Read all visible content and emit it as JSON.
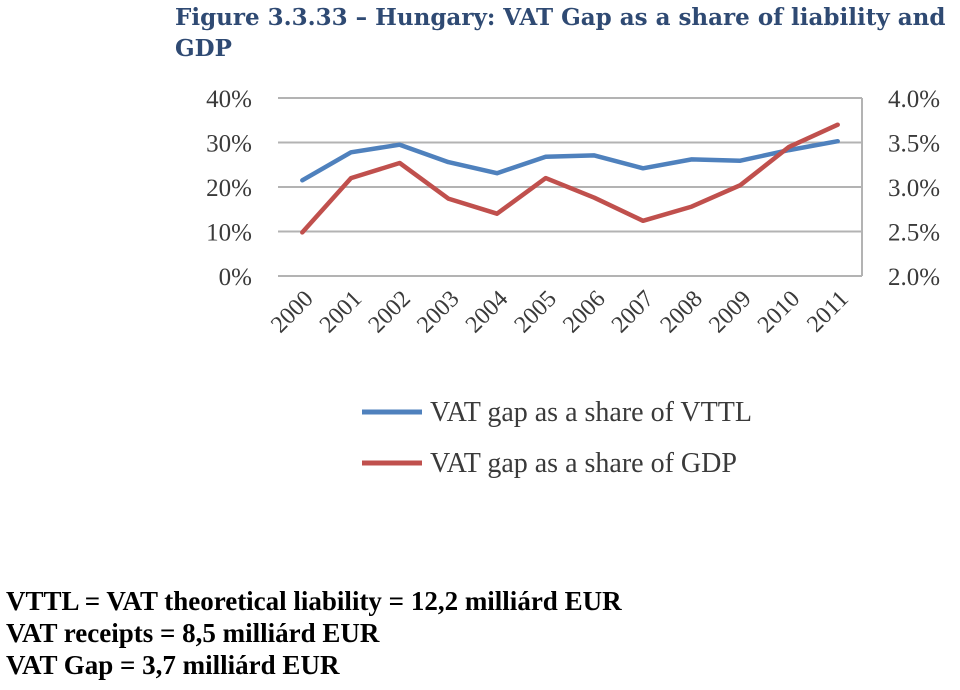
{
  "figure": {
    "title": "Figure 3.3.33 – Hungary: VAT Gap as a share of liability and GDP"
  },
  "chart_data": {
    "type": "line",
    "categories": [
      "2000",
      "2001",
      "2002",
      "2003",
      "2004",
      "2005",
      "2006",
      "2007",
      "2008",
      "2009",
      "2010",
      "2011"
    ],
    "series": [
      {
        "name": "VAT gap as a share of VTTL",
        "axis": "left",
        "color": "#4f81bd",
        "values": [
          21.5,
          27.8,
          29.5,
          25.6,
          23.1,
          26.8,
          27.1,
          24.2,
          26.2,
          25.9,
          28.3,
          30.3
        ]
      },
      {
        "name": "VAT gap as a share of GDP",
        "axis": "right",
        "color": "#c0504d",
        "values": [
          2.49,
          3.1,
          3.27,
          2.87,
          2.7,
          3.1,
          2.88,
          2.62,
          2.78,
          3.02,
          3.45,
          3.7
        ]
      }
    ],
    "y_left": {
      "ylim": [
        0,
        40
      ],
      "ticks": [
        "0%",
        "10%",
        "20%",
        "30%",
        "40%"
      ]
    },
    "y_right": {
      "ylim": [
        2.0,
        4.0
      ],
      "ticks": [
        "2.0%",
        "2.5%",
        "3.0%",
        "3.5%",
        "4.0%"
      ]
    },
    "grid": true,
    "legend": "bottom"
  },
  "notes": {
    "line1": "VTTL = VAT theoretical liability = 12,2 milliárd EUR",
    "line2": "VAT receipts = 8,5 milliárd EUR",
    "line3": "VAT Gap = 3,7 milliárd EUR"
  }
}
